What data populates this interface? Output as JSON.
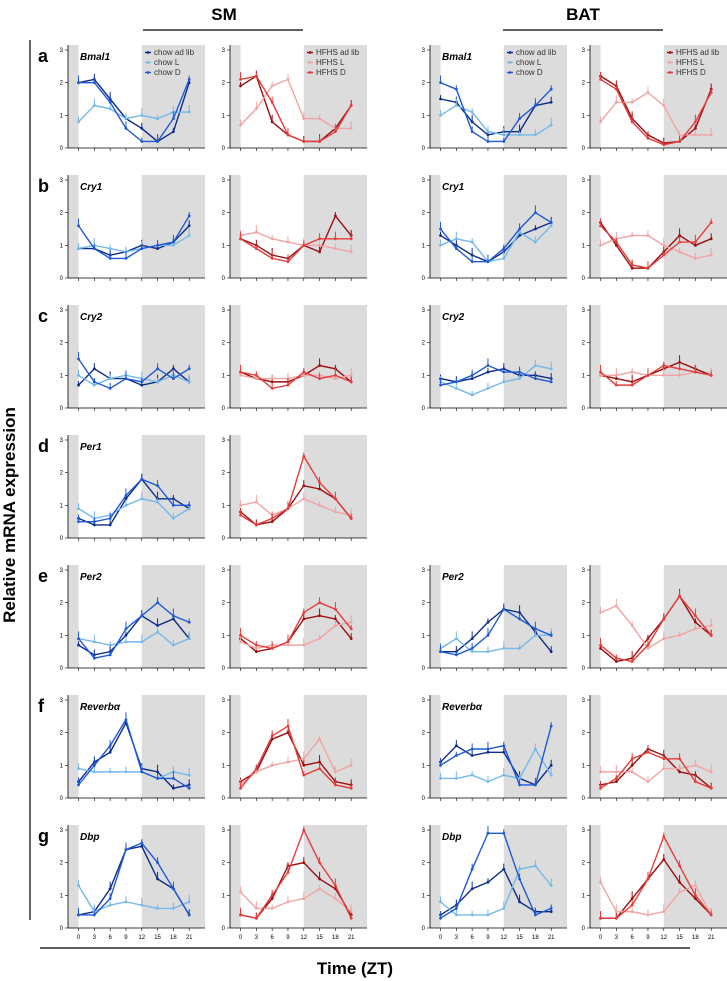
{
  "columns": [
    {
      "title": "SM"
    },
    {
      "title": "BAT"
    }
  ],
  "y_axis_title": "Relative mRNA expression",
  "x_axis_title": "Time (ZT)",
  "colors": {
    "chow_ad_lib": "#0d2d8a",
    "chow_L": "#74b9e8",
    "chow_D": "#1f5ad6",
    "HFHS_ad_lib": "#9a0f0f",
    "HFHS_L": "#f2a3a3",
    "HFHS_D": "#e63c3c",
    "shade": "#dcdcdc"
  },
  "legends": {
    "chow": [
      "chow ad lib",
      "chow L",
      "chow D"
    ],
    "hfhs": [
      "HFHS ad lib",
      "HFHS L",
      "HFHS D"
    ]
  },
  "chart_data": {
    "type": "line",
    "x": [
      0,
      3,
      6,
      9,
      12,
      15,
      18,
      21
    ],
    "xticks": [
      "0",
      "3",
      "6",
      "9",
      "12",
      "15",
      "18",
      "21"
    ],
    "dark_phase": "ZT12-24",
    "panels": [
      {
        "letter": "a",
        "gene": "Bmal1",
        "ylim": [
          0,
          3
        ],
        "yticks": [
          "0",
          "1",
          "2",
          "3"
        ],
        "SM_chow": [
          [
            2.0,
            2.1,
            1.5,
            0.9,
            0.6,
            0.2,
            0.5,
            2.0
          ],
          [
            0.8,
            1.3,
            1.2,
            0.9,
            1.0,
            0.9,
            1.1,
            1.1
          ],
          [
            2.0,
            2.0,
            1.4,
            0.6,
            0.2,
            0.2,
            0.9,
            2.1
          ]
        ],
        "SM_hfhs": [
          [
            1.9,
            2.2,
            0.8,
            0.4,
            0.2,
            0.2,
            0.6,
            1.3
          ],
          [
            0.7,
            1.2,
            1.9,
            2.1,
            0.9,
            0.9,
            0.6,
            0.6
          ],
          [
            2.1,
            2.2,
            1.4,
            0.4,
            0.2,
            0.2,
            0.5,
            1.3
          ]
        ],
        "BAT_chow": [
          [
            1.5,
            1.4,
            0.8,
            0.4,
            0.5,
            0.5,
            1.3,
            1.4
          ],
          [
            1.0,
            1.3,
            1.1,
            0.5,
            0.4,
            0.4,
            0.4,
            0.7
          ],
          [
            2.0,
            1.8,
            0.5,
            0.2,
            0.2,
            0.9,
            1.3,
            1.8
          ]
        ],
        "BAT_hfhs": [
          [
            2.2,
            1.9,
            0.9,
            0.4,
            0.15,
            0.2,
            0.6,
            1.8
          ],
          [
            0.8,
            1.4,
            1.4,
            1.7,
            1.3,
            0.4,
            0.4,
            0.4
          ],
          [
            2.1,
            1.8,
            0.8,
            0.3,
            0.1,
            0.2,
            0.8,
            1.7
          ]
        ]
      },
      {
        "letter": "b",
        "gene": "Cry1",
        "ylim": [
          0,
          3
        ],
        "yticks": [
          "0",
          "1",
          "2",
          "3"
        ],
        "SM_chow": [
          [
            0.9,
            0.9,
            0.7,
            0.8,
            1.0,
            0.9,
            1.1,
            1.6
          ],
          [
            0.9,
            1.0,
            0.9,
            0.8,
            0.9,
            1.0,
            1.0,
            1.3
          ],
          [
            1.6,
            0.9,
            0.6,
            0.6,
            0.9,
            1.0,
            1.1,
            1.9
          ]
        ],
        "SM_hfhs": [
          [
            1.2,
            1.0,
            0.7,
            0.6,
            1.0,
            0.8,
            1.9,
            1.3
          ],
          [
            1.3,
            1.4,
            1.2,
            1.1,
            1.0,
            1.0,
            0.9,
            0.8
          ],
          [
            1.2,
            0.9,
            0.6,
            0.5,
            1.0,
            1.2,
            1.2,
            1.2
          ]
        ],
        "BAT_chow": [
          [
            1.3,
            1.0,
            0.7,
            0.5,
            0.8,
            1.3,
            1.5,
            1.7
          ],
          [
            1.0,
            1.2,
            1.1,
            0.5,
            0.6,
            1.4,
            1.1,
            1.6
          ],
          [
            1.5,
            0.9,
            0.5,
            0.5,
            0.9,
            1.5,
            2.0,
            1.7
          ]
        ],
        "BAT_hfhs": [
          [
            1.7,
            1.0,
            0.3,
            0.3,
            0.8,
            1.3,
            1.0,
            1.2
          ],
          [
            1.0,
            1.2,
            1.3,
            1.3,
            1.0,
            0.8,
            0.6,
            0.7
          ],
          [
            1.6,
            1.1,
            0.4,
            0.3,
            0.7,
            1.1,
            1.1,
            1.7
          ]
        ]
      },
      {
        "letter": "c",
        "gene": "Cry2",
        "ylim": [
          0,
          3
        ],
        "yticks": [
          "0",
          "1",
          "2",
          "3"
        ],
        "SM_chow": [
          [
            0.7,
            1.2,
            0.9,
            0.9,
            0.7,
            0.8,
            1.2,
            0.8
          ],
          [
            1.0,
            0.7,
            0.9,
            1.0,
            0.9,
            0.8,
            1.0,
            0.8
          ],
          [
            1.5,
            0.8,
            0.6,
            0.9,
            0.8,
            1.2,
            0.9,
            1.2
          ]
        ],
        "SM_hfhs": [
          [
            1.1,
            0.9,
            0.8,
            0.8,
            1.0,
            1.3,
            1.2,
            0.8
          ],
          [
            1.0,
            0.9,
            0.9,
            0.9,
            1.0,
            1.0,
            0.9,
            1.0
          ],
          [
            1.1,
            1.0,
            0.6,
            0.7,
            1.1,
            0.9,
            1.0,
            0.8
          ]
        ],
        "BAT_chow": [
          [
            0.9,
            0.8,
            0.9,
            1.1,
            1.2,
            1.0,
            1.0,
            0.9
          ],
          [
            0.8,
            0.6,
            0.4,
            0.6,
            0.8,
            0.9,
            1.3,
            1.2
          ],
          [
            0.7,
            0.8,
            1.0,
            1.3,
            1.1,
            1.1,
            0.9,
            0.8
          ]
        ],
        "BAT_hfhs": [
          [
            1.0,
            0.9,
            0.8,
            1.0,
            1.2,
            1.4,
            1.2,
            1.0
          ],
          [
            1.0,
            1.0,
            1.1,
            1.0,
            1.0,
            1.0,
            1.1,
            1.0
          ],
          [
            1.1,
            0.7,
            0.7,
            1.0,
            1.3,
            1.2,
            1.1,
            1.0
          ]
        ]
      },
      {
        "letter": "d",
        "gene": "Per1",
        "ylim": [
          0,
          3
        ],
        "yticks": [
          "0",
          "1",
          "2",
          "3"
        ],
        "SM_chow": [
          [
            0.6,
            0.4,
            0.4,
            1.2,
            1.8,
            1.2,
            1.2,
            0.9
          ],
          [
            0.9,
            0.6,
            0.7,
            1.0,
            1.2,
            1.1,
            0.6,
            0.9
          ],
          [
            0.5,
            0.5,
            0.6,
            1.3,
            1.8,
            1.6,
            1.0,
            1.0
          ]
        ],
        "SM_hfhs": [
          [
            0.8,
            0.4,
            0.5,
            0.9,
            1.6,
            1.5,
            1.2,
            0.6
          ],
          [
            1.0,
            1.1,
            0.7,
            0.9,
            1.2,
            1.0,
            0.8,
            0.7
          ],
          [
            0.7,
            0.4,
            0.6,
            0.9,
            2.5,
            1.7,
            1.2,
            0.6
          ]
        ],
        "BAT_chow": null,
        "BAT_hfhs": null
      },
      {
        "letter": "e",
        "gene": "Per2",
        "ylim": [
          0,
          3
        ],
        "yticks": [
          "0",
          "1",
          "2",
          "3"
        ],
        "SM_chow": [
          [
            0.7,
            0.4,
            0.5,
            1.0,
            1.6,
            1.3,
            1.5,
            0.9
          ],
          [
            0.9,
            0.8,
            0.7,
            0.8,
            0.8,
            1.1,
            0.7,
            0.9
          ],
          [
            0.9,
            0.3,
            0.4,
            1.2,
            1.6,
            2.0,
            1.6,
            1.4
          ]
        ],
        "SM_hfhs": [
          [
            0.9,
            0.5,
            0.6,
            0.8,
            1.5,
            1.6,
            1.5,
            0.9
          ],
          [
            0.8,
            0.6,
            0.7,
            0.7,
            0.7,
            0.9,
            1.3,
            1.4
          ],
          [
            1.0,
            0.7,
            0.6,
            0.8,
            1.7,
            2.0,
            1.8,
            1.2
          ]
        ],
        "BAT_chow": [
          [
            0.5,
            0.5,
            0.9,
            1.4,
            1.8,
            1.7,
            1.1,
            0.5
          ],
          [
            0.6,
            0.9,
            0.5,
            0.5,
            0.6,
            0.6,
            1.0,
            1.0
          ],
          [
            0.5,
            0.4,
            0.6,
            1.0,
            1.8,
            1.5,
            1.2,
            1.0
          ]
        ],
        "BAT_hfhs": [
          [
            0.6,
            0.2,
            0.3,
            0.9,
            1.5,
            2.2,
            1.4,
            1.0
          ],
          [
            1.7,
            1.9,
            1.3,
            0.6,
            0.9,
            1.0,
            1.2,
            1.3
          ],
          [
            0.7,
            0.3,
            0.2,
            0.7,
            1.5,
            2.2,
            1.6,
            1.0
          ]
        ]
      },
      {
        "letter": "f",
        "gene": "Reverbα",
        "ylim": [
          0,
          3
        ],
        "yticks": [
          "0",
          "1",
          "2",
          "3"
        ],
        "SM_chow": [
          [
            0.5,
            1.1,
            1.4,
            2.3,
            0.9,
            0.8,
            0.3,
            0.4
          ],
          [
            0.9,
            0.8,
            0.8,
            0.8,
            0.8,
            0.6,
            0.8,
            0.7
          ],
          [
            0.4,
            1.0,
            1.6,
            2.4,
            0.8,
            0.6,
            0.6,
            0.3
          ]
        ],
        "SM_hfhs": [
          [
            0.5,
            0.8,
            1.8,
            2.0,
            1.0,
            1.1,
            0.5,
            0.4
          ],
          [
            0.4,
            0.8,
            1.0,
            1.1,
            1.2,
            1.8,
            0.8,
            1.0
          ],
          [
            0.3,
            0.9,
            1.9,
            2.2,
            0.7,
            0.9,
            0.4,
            0.3
          ]
        ],
        "BAT_chow": [
          [
            1.1,
            1.6,
            1.3,
            1.4,
            1.4,
            0.6,
            0.4,
            1.0
          ],
          [
            0.6,
            0.6,
            0.7,
            0.5,
            0.7,
            0.6,
            1.5,
            0.7
          ],
          [
            1.0,
            1.3,
            1.5,
            1.5,
            1.6,
            0.4,
            0.4,
            2.2
          ]
        ],
        "BAT_hfhs": [
          [
            0.4,
            0.5,
            1.0,
            1.5,
            1.3,
            0.8,
            0.7,
            0.3
          ],
          [
            0.8,
            0.8,
            0.8,
            0.5,
            0.9,
            0.9,
            1.0,
            0.8
          ],
          [
            0.3,
            0.6,
            1.2,
            1.4,
            1.2,
            1.2,
            0.5,
            0.3
          ]
        ]
      },
      {
        "letter": "g",
        "gene": "Dbp",
        "ylim": [
          0,
          3
        ],
        "yticks": [
          "0",
          "1",
          "2",
          "3"
        ],
        "SM_chow": [
          [
            0.4,
            0.5,
            1.2,
            2.4,
            2.5,
            1.5,
            1.2,
            0.4
          ],
          [
            1.3,
            0.5,
            0.7,
            0.8,
            0.7,
            0.6,
            0.6,
            0.8
          ],
          [
            0.4,
            0.4,
            0.9,
            2.4,
            2.6,
            2.0,
            1.2,
            0.4
          ]
        ],
        "SM_hfhs": [
          [
            0.4,
            0.3,
            0.9,
            1.9,
            2.0,
            1.5,
            1.2,
            0.4
          ],
          [
            1.1,
            0.6,
            0.6,
            0.8,
            0.9,
            1.2,
            0.9,
            0.5
          ],
          [
            0.4,
            0.3,
            1.0,
            1.7,
            3.0,
            2.0,
            1.3,
            0.3
          ]
        ],
        "BAT_chow": [
          [
            0.4,
            0.7,
            1.2,
            1.4,
            1.8,
            0.8,
            0.5,
            0.5
          ],
          [
            0.8,
            0.4,
            0.4,
            0.4,
            0.6,
            1.8,
            1.9,
            1.3
          ],
          [
            0.3,
            0.6,
            1.8,
            2.9,
            2.9,
            1.5,
            0.4,
            0.6
          ]
        ],
        "BAT_hfhs": [
          [
            0.3,
            0.3,
            0.9,
            1.5,
            2.1,
            1.4,
            0.9,
            0.4
          ],
          [
            1.4,
            0.5,
            0.5,
            0.4,
            0.5,
            1.1,
            1.3,
            0.4
          ],
          [
            0.3,
            0.3,
            0.7,
            1.5,
            2.8,
            1.9,
            1.0,
            0.4
          ]
        ]
      }
    ]
  }
}
